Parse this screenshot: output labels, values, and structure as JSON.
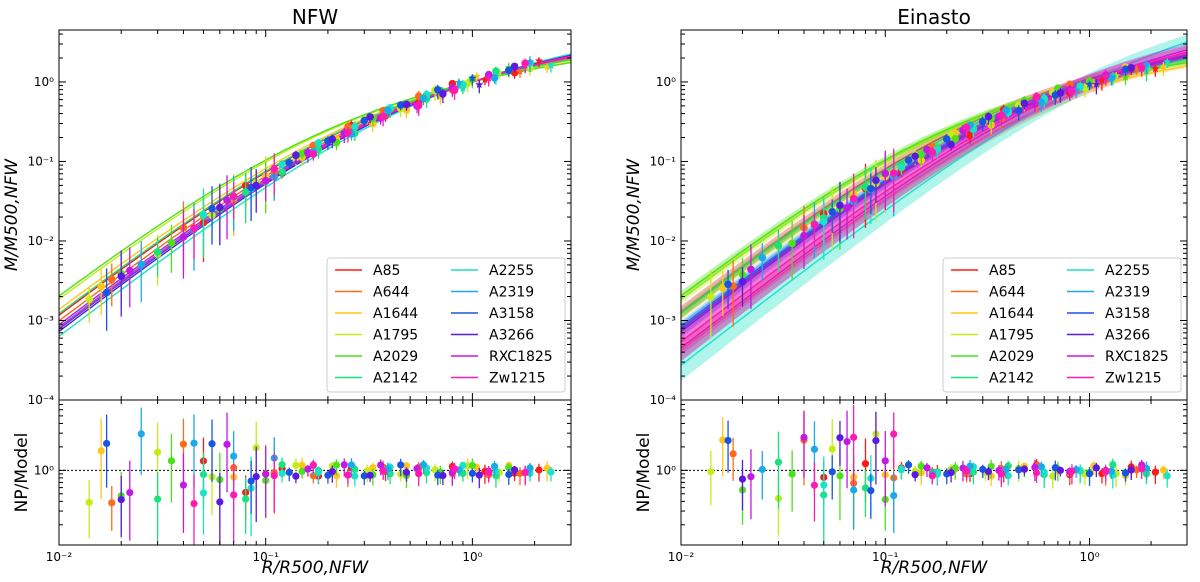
{
  "legend": {
    "columns": [
      [
        "A85",
        "A644",
        "A1644",
        "A1795",
        "A2029",
        "A2142"
      ],
      [
        "A2255",
        "A2319",
        "A3158",
        "A3266",
        "RXC1825",
        "Zw1215"
      ]
    ]
  },
  "chart_data": [
    {
      "type": "scatter",
      "title": "NFW",
      "xlabel": "R/R500,NFW",
      "ylabel_top": "M/M500,NFW",
      "ylabel_bottom": "NP/Model",
      "xscale": "log",
      "yscale": "log",
      "xlim": [
        0.01,
        3.0
      ],
      "ylim_top": [
        0.0001,
        4.5
      ],
      "ylim_bottom": [
        0.11,
        8.0
      ],
      "xticks": [
        0.01,
        0.1,
        1.0
      ],
      "xtick_labels": [
        "10⁻²",
        "10⁻¹",
        "10⁰"
      ],
      "yticks_top": [
        0.0001,
        0.001,
        0.01,
        0.1,
        1.0
      ],
      "ytick_labels_top": [
        "10⁻⁴",
        "10⁻³",
        "10⁻²",
        "10⁻¹",
        "10⁰"
      ],
      "yticks_bottom": [
        1.0
      ],
      "ytick_labels_bottom": [
        "10⁰"
      ],
      "reference_line": 1.0,
      "legend_position": "lower-right",
      "series": [
        {
          "name": "A85",
          "color": "#ff1a1a",
          "model": {
            "c": 4.8,
            "norm": 1.0,
            "band": 0
          },
          "x": [
            0.05,
            0.08,
            0.12,
            0.18,
            0.26,
            0.38,
            0.55,
            0.8,
            1.15,
            1.6,
            2.1
          ]
        },
        {
          "name": "A644",
          "color": "#ff6a1a",
          "model": {
            "c": 4.2,
            "norm": 1.0,
            "band": 0
          },
          "x": [
            0.018,
            0.04,
            0.07,
            0.11,
            0.17,
            0.25,
            0.37,
            0.55,
            0.8,
            1.2,
            1.7
          ]
        },
        {
          "name": "A1644",
          "color": "#ffc61a",
          "model": {
            "c": 5.5,
            "norm": 1.0,
            "band": 0
          },
          "x": [
            0.016,
            0.07,
            0.1,
            0.15,
            0.22,
            0.33,
            0.48,
            0.7,
            1.05,
            1.5,
            2.3
          ]
        },
        {
          "name": "A1795",
          "color": "#c4ec1a",
          "model": {
            "c": 7.0,
            "norm": 1.0,
            "band": 0
          },
          "x": [
            0.014,
            0.03,
            0.055,
            0.09,
            0.14,
            0.21,
            0.31,
            0.45,
            0.66,
            0.95,
            1.35,
            1.9
          ]
        },
        {
          "name": "A2029",
          "color": "#4ce21a",
          "model": {
            "c": 7.5,
            "norm": 1.0,
            "band": 0
          },
          "x": [
            0.02,
            0.035,
            0.06,
            0.1,
            0.15,
            0.22,
            0.33,
            0.48,
            0.7,
            1.0,
            1.5
          ]
        },
        {
          "name": "A2142",
          "color": "#1ae27a",
          "model": {
            "c": 5.0,
            "norm": 1.0,
            "band": 0
          },
          "x": [
            0.03,
            0.05,
            0.08,
            0.12,
            0.18,
            0.27,
            0.4,
            0.6,
            0.9,
            1.3,
            1.9
          ]
        },
        {
          "name": "A2255",
          "color": "#1ae2c6",
          "model": {
            "c": 2.8,
            "norm": 1.0,
            "band": 0
          },
          "x": [
            0.05,
            0.085,
            0.12,
            0.18,
            0.27,
            0.4,
            0.6,
            0.9,
            1.3,
            1.9,
            2.4
          ]
        },
        {
          "name": "A2319",
          "color": "#1aaae8",
          "model": {
            "c": 3.6,
            "norm": 1.0,
            "band": 0
          },
          "x": [
            0.025,
            0.045,
            0.07,
            0.11,
            0.17,
            0.26,
            0.39,
            0.58,
            0.86,
            1.28,
            1.9
          ]
        },
        {
          "name": "A3158",
          "color": "#1a55e2",
          "model": {
            "c": 3.4,
            "norm": 1.0,
            "band": 0
          },
          "x": [
            0.017,
            0.055,
            0.085,
            0.13,
            0.2,
            0.3,
            0.45,
            0.68,
            1.0,
            1.5
          ]
        },
        {
          "name": "A3266",
          "color": "#5a1ae2",
          "model": {
            "c": 3.2,
            "norm": 1.0,
            "band": 0
          },
          "x": [
            0.02,
            0.06,
            0.09,
            0.14,
            0.21,
            0.32,
            0.48,
            0.72,
            1.08,
            1.6
          ]
        },
        {
          "name": "RXC1825",
          "color": "#c21ae2",
          "model": {
            "c": 3.8,
            "norm": 1.0,
            "band": 0
          },
          "x": [
            0.022,
            0.04,
            0.065,
            0.1,
            0.16,
            0.24,
            0.36,
            0.54,
            0.8,
            1.2,
            1.8
          ]
        },
        {
          "name": "Zw1215",
          "color": "#ff1ab4",
          "model": {
            "c": 3.5,
            "norm": 1.0,
            "band": 0
          },
          "x": [
            0.045,
            0.07,
            0.11,
            0.17,
            0.25,
            0.37,
            0.55,
            0.82,
            1.2,
            1.8
          ]
        }
      ]
    },
    {
      "type": "scatter",
      "title": "Einasto",
      "xlabel": "R/R500,NFW",
      "ylabel_top": "M/M500,NFW",
      "ylabel_bottom": "NP/Model",
      "xscale": "log",
      "yscale": "log",
      "xlim": [
        0.01,
        3.0
      ],
      "ylim_top": [
        0.0001,
        4.5
      ],
      "ylim_bottom": [
        0.11,
        8.0
      ],
      "xticks": [
        0.01,
        0.1,
        1.0
      ],
      "xtick_labels": [
        "10⁻²",
        "10⁻¹",
        "10⁰"
      ],
      "yticks_top": [
        0.0001,
        0.001,
        0.01,
        0.1,
        1.0
      ],
      "ytick_labels_top": [
        "10⁻⁴",
        "10⁻³",
        "10⁻²",
        "10⁻¹",
        "10⁰"
      ],
      "yticks_bottom": [
        1.0
      ],
      "ytick_labels_bottom": [
        "10⁰"
      ],
      "reference_line": 1.0,
      "legend_position": "lower-right",
      "series": [
        {
          "name": "A85",
          "color": "#ff1a1a",
          "model": {
            "c": 4.8,
            "norm": 1.1,
            "band": 0.1
          },
          "x": [
            0.05,
            0.08,
            0.12,
            0.18,
            0.26,
            0.38,
            0.55,
            0.8,
            1.15,
            1.6,
            2.1
          ]
        },
        {
          "name": "A644",
          "color": "#ff6a1a",
          "model": {
            "c": 2.2,
            "norm": 0.85,
            "band": 0.18
          },
          "x": [
            0.018,
            0.04,
            0.07,
            0.11,
            0.17,
            0.25,
            0.37,
            0.55,
            0.8,
            1.2,
            1.7
          ]
        },
        {
          "name": "A1644",
          "color": "#ffc61a",
          "model": {
            "c": 5.5,
            "norm": 0.85,
            "band": 0.08
          },
          "x": [
            0.016,
            0.07,
            0.1,
            0.15,
            0.22,
            0.33,
            0.48,
            0.7,
            1.05,
            1.5,
            2.3
          ]
        },
        {
          "name": "A1795",
          "color": "#c4ec1a",
          "model": {
            "c": 7.0,
            "norm": 1.0,
            "band": 0.08
          },
          "x": [
            0.014,
            0.03,
            0.055,
            0.09,
            0.14,
            0.21,
            0.31,
            0.45,
            0.66,
            0.95,
            1.35,
            1.9
          ]
        },
        {
          "name": "A2029",
          "color": "#4ce21a",
          "model": {
            "c": 7.5,
            "norm": 1.0,
            "band": 0.08
          },
          "x": [
            0.02,
            0.035,
            0.06,
            0.1,
            0.15,
            0.22,
            0.33,
            0.48,
            0.7,
            1.0,
            1.5
          ]
        },
        {
          "name": "A2142",
          "color": "#1ae27a",
          "model": {
            "c": 5.0,
            "norm": 1.0,
            "band": 0.08
          },
          "x": [
            0.03,
            0.05,
            0.08,
            0.12,
            0.18,
            0.27,
            0.4,
            0.6,
            0.9,
            1.3,
            1.9
          ]
        },
        {
          "name": "A2255",
          "color": "#1ae2c6",
          "model": {
            "c": 1.1,
            "norm": 1.0,
            "band": 0.3
          },
          "x": [
            0.05,
            0.085,
            0.12,
            0.18,
            0.27,
            0.4,
            0.6,
            0.9,
            1.3,
            1.9,
            2.4
          ]
        },
        {
          "name": "A2319",
          "color": "#1aaae8",
          "model": {
            "c": 3.6,
            "norm": 1.0,
            "band": 0.1
          },
          "x": [
            0.025,
            0.045,
            0.07,
            0.11,
            0.17,
            0.26,
            0.39,
            0.58,
            0.86,
            1.28,
            1.9
          ]
        },
        {
          "name": "A3158",
          "color": "#1a55e2",
          "model": {
            "c": 3.4,
            "norm": 1.0,
            "band": 0.1
          },
          "x": [
            0.017,
            0.055,
            0.085,
            0.13,
            0.2,
            0.3,
            0.45,
            0.68,
            1.0,
            1.5
          ]
        },
        {
          "name": "A3266",
          "color": "#5a1ae2",
          "model": {
            "c": 3.2,
            "norm": 1.0,
            "band": 0.1
          },
          "x": [
            0.02,
            0.06,
            0.09,
            0.14,
            0.21,
            0.32,
            0.48,
            0.72,
            1.08,
            1.6
          ]
        },
        {
          "name": "RXC1825",
          "color": "#c21ae2",
          "model": {
            "c": 2.0,
            "norm": 1.0,
            "band": 0.25
          },
          "x": [
            0.022,
            0.04,
            0.065,
            0.1,
            0.16,
            0.24,
            0.36,
            0.54,
            0.8,
            1.2,
            1.8
          ]
        },
        {
          "name": "Zw1215",
          "color": "#ff1ab4",
          "model": {
            "c": 2.4,
            "norm": 1.0,
            "band": 0.25
          },
          "x": [
            0.045,
            0.07,
            0.11,
            0.17,
            0.25,
            0.37,
            0.55,
            0.82,
            1.2,
            1.8
          ]
        }
      ]
    }
  ]
}
